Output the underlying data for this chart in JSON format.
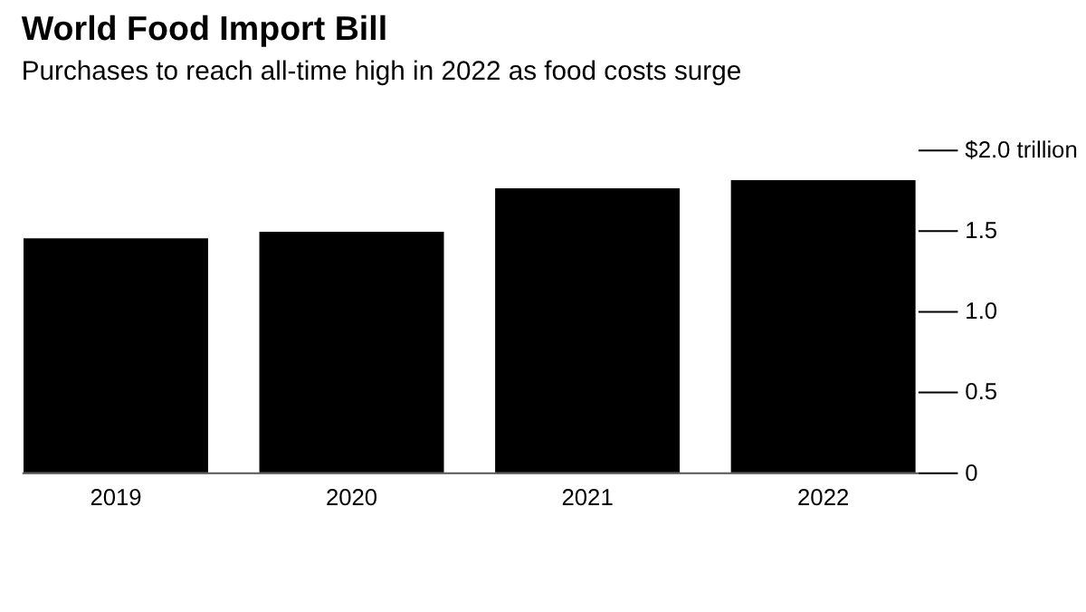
{
  "chart_data": {
    "type": "bar",
    "title": "World Food Import Bill",
    "subtitle": "Purchases to reach all-time high in 2022 as food costs surge",
    "categories": [
      "2019",
      "2020",
      "2021",
      "2022"
    ],
    "values": [
      1.45,
      1.49,
      1.76,
      1.81
    ],
    "color": "#000000",
    "ylim": [
      0,
      2
    ],
    "yticks": [
      0,
      0.5,
      {
        "value": 1.0,
        "label": "1.0"
      },
      1.5,
      {
        "value": 2.0,
        "label": "$2.0 trillion"
      }
    ],
    "grid": false
  }
}
